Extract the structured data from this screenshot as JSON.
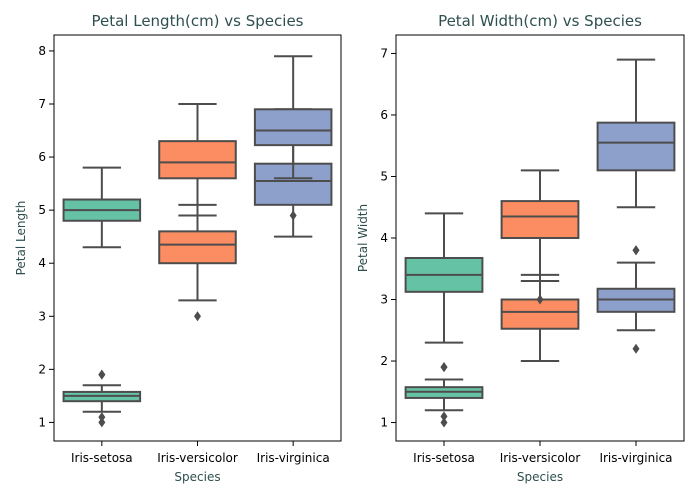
{
  "chart_data": [
    {
      "type": "box",
      "title": "Petal Length(cm) vs Species",
      "xlabel": "Species",
      "ylabel": "Petal Length",
      "categories": [
        "Iris-setosa",
        "Iris-versicolor",
        "Iris-virginica"
      ],
      "ylim": [
        0.65,
        8.3
      ],
      "yticks": [
        1,
        2,
        3,
        4,
        5,
        6,
        7,
        8
      ],
      "boxes": [
        {
          "category": "Iris-setosa",
          "color": "#66c2a5",
          "q1": 1.4,
          "median": 1.5,
          "q3": 1.575,
          "whisker_low": 1.2,
          "whisker_high": 1.7,
          "outliers": [
            1.0,
            1.1,
            1.9,
            1.9
          ]
        },
        {
          "category": "Iris-versicolor",
          "color": "#fc8d62",
          "q1": 4.0,
          "median": 4.35,
          "q3": 4.6,
          "whisker_low": 3.3,
          "whisker_high": 5.1,
          "outliers": [
            3.0
          ]
        },
        {
          "category": "Iris-virginica",
          "color": "#8da0cb",
          "q1": 5.1,
          "median": 5.55,
          "q3": 5.875,
          "whisker_low": 4.5,
          "whisker_high": 6.9,
          "outliers": [
            4.9
          ]
        },
        {
          "category": "Iris-setosa",
          "color": "#66c2a5",
          "q1": 4.8,
          "median": 5.0,
          "q3": 5.2,
          "whisker_low": 4.3,
          "whisker_high": 5.8,
          "outliers": []
        },
        {
          "category": "Iris-versicolor",
          "color": "#fc8d62",
          "q1": 5.6,
          "median": 5.9,
          "q3": 6.3,
          "whisker_low": 4.9,
          "whisker_high": 7.0,
          "outliers": []
        },
        {
          "category": "Iris-virginica",
          "color": "#8da0cb",
          "q1": 6.225,
          "median": 6.5,
          "q3": 6.9,
          "whisker_low": 5.6,
          "whisker_high": 7.9,
          "outliers": []
        }
      ]
    },
    {
      "type": "box",
      "title": "Petal Width(cm) vs Species",
      "xlabel": "Species",
      "ylabel": "Petal Width",
      "categories": [
        "Iris-setosa",
        "Iris-versicolor",
        "Iris-virginica"
      ],
      "ylim": [
        0.7,
        7.3
      ],
      "yticks": [
        1,
        2,
        3,
        4,
        5,
        6,
        7
      ],
      "boxes": [
        {
          "category": "Iris-setosa",
          "color": "#66c2a5",
          "q1": 1.4,
          "median": 1.5,
          "q3": 1.575,
          "whisker_low": 1.2,
          "whisker_high": 1.7,
          "outliers": [
            1.0,
            1.1,
            1.9,
            1.9
          ]
        },
        {
          "category": "Iris-versicolor",
          "color": "#fc8d62",
          "q1": 2.525,
          "median": 2.8,
          "q3": 3.0,
          "whisker_low": 2.0,
          "whisker_high": 3.4,
          "outliers": []
        },
        {
          "category": "Iris-virginica",
          "color": "#8da0cb",
          "q1": 2.8,
          "median": 3.0,
          "q3": 3.175,
          "whisker_low": 2.5,
          "whisker_high": 3.6,
          "outliers": [
            2.2,
            3.8,
            3.8
          ]
        },
        {
          "category": "Iris-setosa",
          "color": "#66c2a5",
          "q1": 3.125,
          "median": 3.4,
          "q3": 3.675,
          "whisker_low": 2.3,
          "whisker_high": 4.4,
          "outliers": []
        },
        {
          "category": "Iris-versicolor",
          "color": "#fc8d62",
          "q1": 4.0,
          "median": 4.35,
          "q3": 4.6,
          "whisker_low": 3.3,
          "whisker_high": 5.1,
          "outliers": [
            3.0
          ]
        },
        {
          "category": "Iris-virginica",
          "color": "#8da0cb",
          "q1": 5.1,
          "median": 5.55,
          "q3": 5.875,
          "whisker_low": 4.5,
          "whisker_high": 6.9,
          "outliers": []
        }
      ]
    }
  ]
}
